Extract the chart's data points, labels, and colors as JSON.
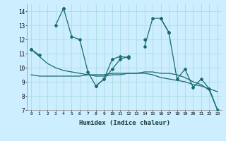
{
  "title": "",
  "xlabel": "Humidex (Indice chaleur)",
  "bg_color": "#cceeff",
  "grid_color": "#aadddd",
  "line_color": "#1a6b6b",
  "x": [
    0,
    1,
    2,
    3,
    4,
    5,
    6,
    7,
    8,
    9,
    10,
    11,
    12,
    13,
    14,
    15,
    16,
    17,
    18,
    19,
    20,
    21,
    22,
    23
  ],
  "line1": [
    11.3,
    10.9,
    null,
    null,
    14.2,
    null,
    null,
    null,
    8.7,
    9.2,
    10.6,
    10.8,
    10.7,
    null,
    12.0,
    null,
    13.5,
    12.5,
    null,
    null,
    null,
    null,
    null,
    null
  ],
  "line2": [
    11.3,
    null,
    null,
    13.0,
    14.2,
    12.2,
    12.0,
    9.7,
    8.7,
    9.2,
    9.9,
    10.6,
    10.8,
    null,
    11.5,
    13.5,
    13.5,
    12.5,
    9.2,
    9.9,
    8.6,
    9.2,
    8.5,
    7.0
  ],
  "line3": [
    9.5,
    9.4,
    9.4,
    9.4,
    9.4,
    9.4,
    9.4,
    9.5,
    9.5,
    9.5,
    9.6,
    9.6,
    9.6,
    9.6,
    9.6,
    9.5,
    9.3,
    9.2,
    9.1,
    9.0,
    8.8,
    8.7,
    8.5,
    8.3
  ],
  "line4": [
    11.3,
    10.8,
    10.3,
    10.0,
    9.8,
    9.7,
    9.6,
    9.5,
    9.4,
    9.4,
    9.5,
    9.5,
    9.6,
    9.6,
    9.7,
    9.7,
    9.6,
    9.6,
    9.5,
    9.3,
    9.0,
    8.8,
    8.4,
    7.0
  ],
  "ylim": [
    7,
    14.5
  ],
  "yticks": [
    7,
    8,
    9,
    10,
    11,
    12,
    13,
    14
  ]
}
